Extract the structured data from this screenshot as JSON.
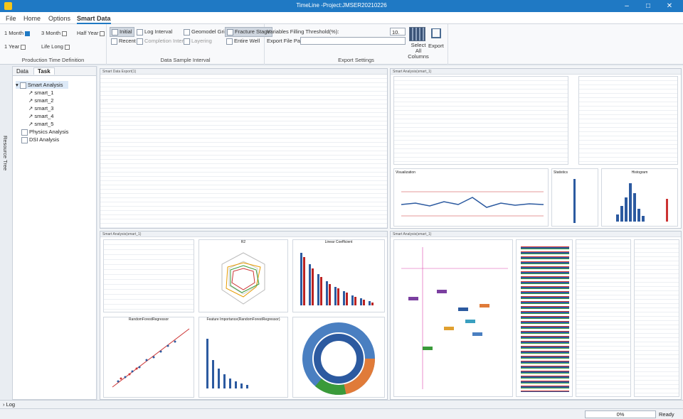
{
  "window": {
    "title": "TimeLine -Project:JMSER20210226",
    "controls": [
      "–",
      "□",
      "✕"
    ]
  },
  "menu": {
    "file": "File",
    "home": "Home",
    "options": "Options",
    "smart_data": "Smart Data"
  },
  "ribbon": {
    "production": {
      "m1": "1 Month",
      "m3": "3 Month",
      "half": "Half Year",
      "y1": "1 Year",
      "life": "Life Long",
      "caption": "Production Time Definition"
    },
    "sample": {
      "initial": "Initial",
      "recent": "Recent",
      "log": "Log Interval",
      "completion": "Completion Interval",
      "geomodel": "Geomodel Grid",
      "layering": "Layering",
      "fracture": "Fracture Stage",
      "entire": "Entire Well",
      "caption": "Data Sample Interval"
    },
    "export": {
      "threshold_label": "Variables Filling Threshold(%):",
      "threshold_value": "10.",
      "path_label": "Export File Path",
      "select_all": "Select All Columns",
      "export": "Export",
      "caption": "Export Settings"
    }
  },
  "side": {
    "resource_tree": "Resource Tree"
  },
  "left": {
    "tab_data": "Data",
    "tab_task": "Task",
    "tree": [
      "Smart Analysis",
      "smart_1",
      "smart_2",
      "smart_3",
      "smart_4",
      "smart_5",
      "Physics Analysis",
      "DSI Analysis"
    ]
  },
  "panels": {
    "p1": "Smart Data Export(1)",
    "p2": "Smart Analysis(smart_1)",
    "p3": "Smart Analysis(smart_1)",
    "p4": "Smart Analysis(smart_1)"
  },
  "charts": {
    "viz": "Visualization",
    "stat": "Statistics",
    "hist": "Histogram",
    "radar_t": "R2",
    "lc": "Linear Coefficient",
    "rf": "RandomForestRegressor",
    "ft": "Feature Importance(RandomForestRegressor)"
  },
  "log": {
    "label": "Log"
  },
  "status": {
    "progress": "0%",
    "progress_value": 0,
    "state": "Ready"
  }
}
